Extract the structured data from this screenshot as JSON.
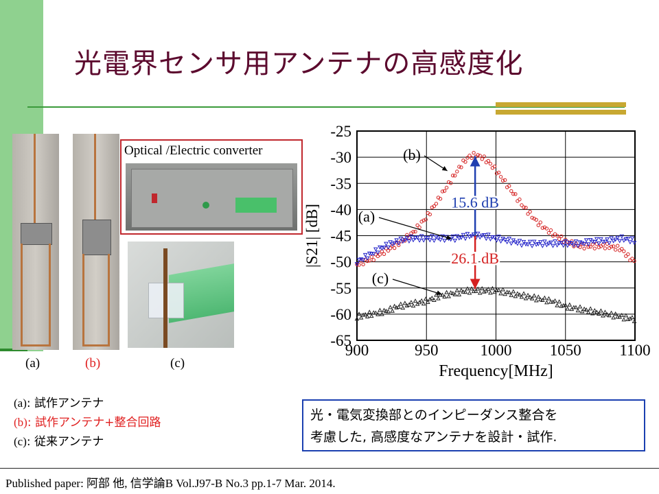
{
  "title": "光電界センサ用アンテナの高感度化",
  "photos": {
    "converter_label": "Optical /Electric converter",
    "captions": [
      "(a)",
      "(b)",
      "(c)"
    ]
  },
  "legend": [
    {
      "key": "(a)",
      "text": ": 試作アンテナ",
      "color": "#000000"
    },
    {
      "key": "(b)",
      "text": ": 試作アンテナ+整合回路",
      "color": "#e02020"
    },
    {
      "key": "(c)",
      "text": ": 従来アンテナ",
      "color": "#000000"
    }
  ],
  "note": {
    "line1": "光・電気変換部とのインピーダンス整合を",
    "line2": "考慮した, 高感度なアンテナを設計・試作."
  },
  "footer": "Published paper: 阿部 他, 信学論B Vol.J97-B No.3 pp.1-7 Mar. 2014.",
  "chart_data": {
    "type": "scatter",
    "xlabel": "Frequency[MHz]",
    "ylabel": "|S21| [dB]",
    "xlim": [
      900,
      1100
    ],
    "ylim": [
      -65,
      -25
    ],
    "xticks": [
      900,
      950,
      1000,
      1050,
      1100
    ],
    "yticks": [
      -25,
      -30,
      -35,
      -40,
      -45,
      -50,
      -55,
      -60,
      -65
    ],
    "grid": true,
    "series": [
      {
        "name": "(b)",
        "color": "#d42020",
        "marker": "circle",
        "x": [
          900,
          910,
          920,
          930,
          940,
          950,
          960,
          970,
          975,
          980,
          985,
          990,
          995,
          1000,
          1010,
          1020,
          1030,
          1040,
          1050,
          1060,
          1070,
          1080,
          1090,
          1095,
          1100
        ],
        "y": [
          -50.5,
          -49.5,
          -48,
          -46.5,
          -44.5,
          -41.5,
          -37.5,
          -33.5,
          -31.5,
          -30,
          -29.5,
          -30,
          -31,
          -32.5,
          -36,
          -39.5,
          -42.5,
          -44.5,
          -46,
          -47,
          -47,
          -47,
          -47.5,
          -49,
          -50
        ]
      },
      {
        "name": "(a)",
        "color": "#2020c8",
        "marker": "triangle-down",
        "x": [
          900,
          910,
          920,
          930,
          940,
          950,
          960,
          970,
          980,
          990,
          1000,
          1010,
          1020,
          1030,
          1040,
          1050,
          1060,
          1070,
          1080,
          1090,
          1100
        ],
        "y": [
          -50,
          -48.5,
          -47,
          -46,
          -45.5,
          -45.5,
          -45.5,
          -45.5,
          -45,
          -45,
          -45.5,
          -46,
          -46.5,
          -46.5,
          -46.5,
          -46.5,
          -46.5,
          -46,
          -46,
          -45.5,
          -46
        ]
      },
      {
        "name": "(c)",
        "color": "#222222",
        "marker": "triangle-up",
        "x": [
          900,
          910,
          920,
          930,
          940,
          950,
          960,
          970,
          980,
          990,
          1000,
          1010,
          1020,
          1030,
          1040,
          1050,
          1060,
          1070,
          1080,
          1090,
          1100
        ],
        "y": [
          -60.5,
          -60,
          -59.5,
          -58.5,
          -58,
          -57.5,
          -56.5,
          -56,
          -55.5,
          -55.5,
          -55.5,
          -56,
          -56.5,
          -57,
          -57.5,
          -58.5,
          -59,
          -59.5,
          -60,
          -60.5,
          -61
        ]
      }
    ],
    "annotations": [
      {
        "text": "15.6 dB",
        "color": "#1f3fb0"
      },
      {
        "text": "26.1 dB",
        "color": "#d42020"
      }
    ]
  }
}
